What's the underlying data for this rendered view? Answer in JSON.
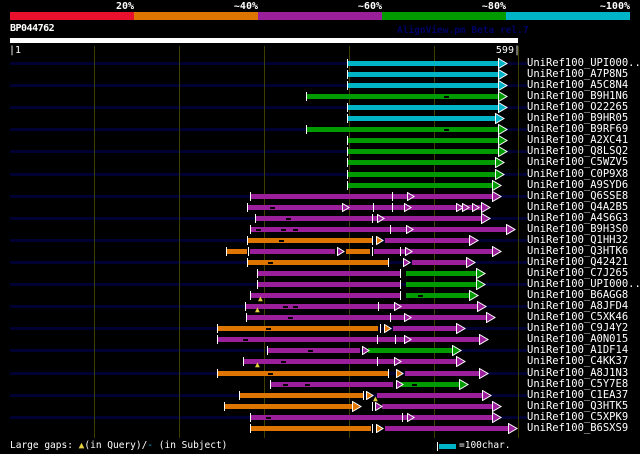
{
  "header": {
    "query_id": "BP044762",
    "app_credit": "AlignView.pm Beta rel.7"
  },
  "colorscale": {
    "labels": [
      "20%",
      "~40%",
      "~60%",
      "~80%",
      "~100%"
    ],
    "order": [
      "red",
      "orange",
      "purple",
      "green",
      "cyan"
    ],
    "colors": {
      "red": "#e8102d",
      "orange": "#dd7500",
      "purple": "#9b1f9b",
      "green": "#009b00",
      "cyan": "#00b4c8",
      "navy_stripe": "#000033",
      "gridline": "#3e3e00",
      "gap_yellow": "#e6d23c"
    }
  },
  "ruler": {
    "start_label": "|1",
    "end_label": "599|",
    "min": 1,
    "max": 599,
    "grid_interval": 100
  },
  "legend": {
    "swatch_color": "cyan",
    "label": "=100char."
  },
  "footer": {
    "prefix": "Large gaps: ",
    "query_symbol": "▲",
    "query_text": "(in Query)/",
    "subject_symbol": "-",
    "subject_text": " (in Subject)"
  },
  "chart_data": {
    "type": "bar",
    "subtype": "sequence-alignment-hit-spans",
    "xlabel": "query position (residues)",
    "xlim": [
      1,
      599
    ],
    "identity_bins": [
      "20%",
      "~40%",
      "~60%",
      "~80%",
      "~100%"
    ],
    "rows": [
      {
        "label": "UniRef100_UPI000..",
        "navy": true,
        "segments": [
          {
            "color": "cyan",
            "start": 398,
            "end": 577,
            "cap": "arrow"
          }
        ],
        "ticks": [
          398
        ]
      },
      {
        "label": "UniRef100_A7P8N5",
        "navy": false,
        "segments": [
          {
            "color": "cyan",
            "start": 398,
            "end": 577,
            "cap": "arrow"
          }
        ],
        "ticks": [
          398
        ]
      },
      {
        "label": "UniRef100_A5C8N4",
        "navy": true,
        "segments": [
          {
            "color": "cyan",
            "start": 398,
            "end": 577,
            "cap": "arrow"
          }
        ],
        "ticks": [
          398
        ]
      },
      {
        "label": "UniRef100_B9H1N6",
        "navy": false,
        "segments": [
          {
            "color": "green",
            "start": 349,
            "end": 577,
            "cap": "arrow"
          }
        ],
        "ticks": [
          349
        ],
        "dashes": [
          514
        ]
      },
      {
        "label": "UniRef100_O22265",
        "navy": true,
        "segments": [
          {
            "color": "cyan",
            "start": 398,
            "end": 577,
            "cap": "arrow"
          }
        ],
        "ticks": [
          398
        ]
      },
      {
        "label": "UniRef100_B9HR05",
        "navy": false,
        "segments": [
          {
            "color": "cyan",
            "start": 398,
            "end": 573,
            "cap": "arrow"
          }
        ],
        "ticks": [
          398
        ]
      },
      {
        "label": "UniRef100_B9RF69",
        "navy": true,
        "segments": [
          {
            "color": "green",
            "start": 349,
            "end": 577,
            "cap": "arrow"
          }
        ],
        "ticks": [
          349
        ],
        "dashes": [
          514
        ]
      },
      {
        "label": "UniRef100_A2XC41",
        "navy": false,
        "segments": [
          {
            "color": "green",
            "start": 398,
            "end": 577,
            "cap": "arrow"
          }
        ],
        "ticks": [
          398
        ]
      },
      {
        "label": "UniRef100_Q8LSQ2",
        "navy": true,
        "segments": [
          {
            "color": "green",
            "start": 398,
            "end": 577,
            "cap": "arrow"
          }
        ],
        "ticks": [
          398
        ]
      },
      {
        "label": "UniRef100_C5WZV5",
        "navy": false,
        "segments": [
          {
            "color": "green",
            "start": 398,
            "end": 573,
            "cap": "arrow"
          }
        ],
        "ticks": [
          398
        ]
      },
      {
        "label": "UniRef100_C0P9X8",
        "navy": true,
        "segments": [
          {
            "color": "green",
            "start": 398,
            "end": 573,
            "cap": "arrow"
          }
        ],
        "ticks": [
          398
        ]
      },
      {
        "label": "UniRef100_A9SYD6",
        "navy": false,
        "segments": [
          {
            "color": "green",
            "start": 398,
            "end": 570,
            "cap": "arrow"
          }
        ],
        "ticks": [
          398
        ]
      },
      {
        "label": "UniRef100_Q6SSE8",
        "navy": true,
        "segments": [
          {
            "color": "purple",
            "start": 284,
            "end": 570,
            "cap": "arrow"
          }
        ],
        "ticks": [
          284,
          451
        ],
        "marks": [
          {
            "pos": 470,
            "color": "purple"
          }
        ]
      },
      {
        "label": "UniRef100_Q4A2B5",
        "navy": false,
        "segments": [
          {
            "color": "purple",
            "start": 280,
            "end": 557,
            "cap": "arrow"
          }
        ],
        "ticks": [
          280,
          428,
          451
        ],
        "dashes": [
          309
        ],
        "marks": [
          {
            "pos": 393,
            "color": "purple"
          },
          {
            "pos": 466,
            "color": "purple"
          },
          {
            "pos": 527,
            "color": "purple"
          },
          {
            "pos": 534,
            "color": "purple"
          },
          {
            "pos": 546,
            "color": "purple"
          }
        ]
      },
      {
        "label": "UniRef100_A4S6G3",
        "navy": true,
        "segments": [
          {
            "color": "purple",
            "start": 289,
            "end": 557,
            "cap": "arrow"
          }
        ],
        "ticks": [
          289,
          427
        ],
        "dashes": [
          328
        ],
        "marks": [
          {
            "pos": 434,
            "color": "purple"
          }
        ]
      },
      {
        "label": "UniRef100_B9H3S0",
        "navy": false,
        "segments": [
          {
            "color": "purple",
            "start": 284,
            "end": 586,
            "cap": "arrow"
          }
        ],
        "ticks": [
          284,
          448
        ],
        "dashes": [
          293,
          322,
          336
        ],
        "marks": [
          {
            "pos": 468,
            "color": "purple"
          }
        ]
      },
      {
        "label": "UniRef100_Q1HH32",
        "navy": true,
        "segments": [
          {
            "color": "orange",
            "start": 280,
            "end": 427,
            "cap": "none"
          },
          {
            "color": "purple",
            "start": 442,
            "end": 542,
            "cap": "arrow"
          }
        ],
        "ticks": [
          280,
          427
        ],
        "dashes": [
          320
        ],
        "marks": [
          {
            "pos": 433,
            "color": "orange"
          }
        ]
      },
      {
        "label": "UniRef100_Q3HTK6",
        "navy": false,
        "segments": [
          {
            "color": "orange",
            "start": 255,
            "end": 280,
            "cap": "none"
          },
          {
            "color": "purple",
            "start": 284,
            "end": 384,
            "cap": "none"
          },
          {
            "color": "orange",
            "start": 397,
            "end": 425,
            "cap": "none"
          },
          {
            "color": "purple",
            "start": 430,
            "end": 570,
            "cap": "arrow"
          }
        ],
        "ticks": [
          255,
          281,
          427,
          460
        ],
        "marks": [
          {
            "pos": 387,
            "color": "purple"
          },
          {
            "pos": 467,
            "color": "purple"
          }
        ]
      },
      {
        "label": "UniRef100_Q42421",
        "navy": true,
        "segments": [
          {
            "color": "orange",
            "start": 280,
            "end": 446,
            "cap": "none"
          },
          {
            "color": "purple",
            "start": 474,
            "end": 539,
            "cap": "arrow"
          }
        ],
        "ticks": [
          280,
          446
        ],
        "dashes": [
          307
        ],
        "marks": [
          {
            "pos": 465,
            "color": "purple"
          }
        ]
      },
      {
        "label": "UniRef100_C7J265",
        "navy": false,
        "segments": [
          {
            "color": "purple",
            "start": 292,
            "end": 460,
            "cap": "none"
          },
          {
            "color": "green",
            "start": 467,
            "end": 551,
            "cap": "arrow"
          }
        ],
        "ticks": [
          292,
          460
        ]
      },
      {
        "label": "UniRef100_UPI000..",
        "navy": true,
        "segments": [
          {
            "color": "purple",
            "start": 292,
            "end": 460,
            "cap": "none"
          },
          {
            "color": "green",
            "start": 467,
            "end": 551,
            "cap": "arrow"
          }
        ],
        "ticks": [
          292,
          460
        ]
      },
      {
        "label": "UniRef100_B6AGG8",
        "navy": false,
        "segments": [
          {
            "color": "purple",
            "start": 284,
            "end": 460,
            "cap": "none"
          },
          {
            "color": "green",
            "start": 467,
            "end": 543,
            "cap": "arrow"
          }
        ],
        "ticks": [
          284,
          460
        ],
        "dashes": [
          484
        ],
        "gaps": [
          296
        ]
      },
      {
        "label": "UniRef100_A8JFD4",
        "navy": true,
        "segments": [
          {
            "color": "purple",
            "start": 278,
            "end": 552,
            "cap": "arrow"
          }
        ],
        "ticks": [
          278,
          434
        ],
        "dashes": [
          325,
          336
        ],
        "marks": [
          {
            "pos": 454,
            "color": "purple"
          }
        ],
        "gaps": [
          293
        ]
      },
      {
        "label": "UniRef100_C5XK46",
        "navy": false,
        "segments": [
          {
            "color": "purple",
            "start": 279,
            "end": 563,
            "cap": "arrow"
          }
        ],
        "ticks": [
          279,
          448
        ],
        "dashes": [
          331
        ],
        "marks": [
          {
            "pos": 466,
            "color": "purple"
          }
        ]
      },
      {
        "label": "UniRef100_C9J4Y2",
        "navy": true,
        "segments": [
          {
            "color": "orange",
            "start": 245,
            "end": 434,
            "cap": "none"
          },
          {
            "color": "purple",
            "start": 452,
            "end": 527,
            "cap": "arrow"
          }
        ],
        "ticks": [
          245,
          437
        ],
        "dashes": [
          305
        ],
        "marks": [
          {
            "pos": 442,
            "color": "orange"
          }
        ]
      },
      {
        "label": "UniRef100_A0N015",
        "navy": false,
        "segments": [
          {
            "color": "purple",
            "start": 245,
            "end": 554,
            "cap": "arrow"
          }
        ],
        "ticks": [
          245,
          433,
          454
        ],
        "dashes": [
          278
        ],
        "marks": [
          {
            "pos": 466,
            "color": "purple"
          }
        ]
      },
      {
        "label": "UniRef100_A1DF14",
        "navy": true,
        "segments": [
          {
            "color": "purple",
            "start": 304,
            "end": 413,
            "cap": "none"
          },
          {
            "color": "green",
            "start": 423,
            "end": 523,
            "cap": "arrow"
          }
        ],
        "ticks": [
          304
        ],
        "dashes": [
          354
        ],
        "marks": [
          {
            "pos": 417,
            "color": "purple"
          }
        ]
      },
      {
        "label": "UniRef100_C4KK37",
        "navy": false,
        "segments": [
          {
            "color": "purple",
            "start": 275,
            "end": 527,
            "cap": "arrow"
          }
        ],
        "ticks": [
          275,
          433
        ],
        "dashes": [
          322
        ],
        "marks": [
          {
            "pos": 454,
            "color": "purple"
          }
        ],
        "gaps": [
          293
        ]
      },
      {
        "label": "UniRef100_A8J1N3",
        "navy": true,
        "segments": [
          {
            "color": "orange",
            "start": 245,
            "end": 446,
            "cap": "none"
          },
          {
            "color": "purple",
            "start": 466,
            "end": 554,
            "cap": "arrow"
          }
        ],
        "ticks": [
          245,
          446
        ],
        "dashes": [
          307
        ],
        "marks": [
          {
            "pos": 457,
            "color": "orange"
          }
        ]
      },
      {
        "label": "UniRef100_C5Y7E8",
        "navy": false,
        "segments": [
          {
            "color": "purple",
            "start": 307,
            "end": 452,
            "cap": "none"
          },
          {
            "color": "green",
            "start": 460,
            "end": 531,
            "cap": "arrow"
          }
        ],
        "ticks": [
          307
        ],
        "dashes": [
          325,
          351,
          476
        ],
        "marks": [
          {
            "pos": 456,
            "color": "purple"
          }
        ]
      },
      {
        "label": "UniRef100_C1EA37",
        "navy": true,
        "segments": [
          {
            "color": "orange",
            "start": 270,
            "end": 416,
            "cap": "none"
          },
          {
            "color": "purple",
            "start": 433,
            "end": 558,
            "cap": "arrow"
          }
        ],
        "ticks": [
          270,
          416
        ],
        "marks": [
          {
            "pos": 421,
            "color": "orange"
          }
        ],
        "gaps": [
          432
        ]
      },
      {
        "label": "UniRef100_Q3HTK5",
        "navy": false,
        "segments": [
          {
            "color": "orange",
            "start": 253,
            "end": 405,
            "cap": "arrow"
          },
          {
            "color": "purple",
            "start": 439,
            "end": 570,
            "cap": "arrow"
          }
        ],
        "ticks": [
          253,
          427
        ],
        "marks": [
          {
            "pos": 432,
            "color": "purple"
          }
        ]
      },
      {
        "label": "UniRef100_C5XPK9",
        "navy": true,
        "segments": [
          {
            "color": "purple",
            "start": 284,
            "end": 570,
            "cap": "arrow"
          }
        ],
        "ticks": [
          284,
          462
        ],
        "dashes": [
          305
        ],
        "marks": [
          {
            "pos": 470,
            "color": "purple"
          }
        ]
      },
      {
        "label": "UniRef100_B6SXS9",
        "navy": false,
        "segments": [
          {
            "color": "orange",
            "start": 284,
            "end": 427,
            "cap": "none"
          },
          {
            "color": "purple",
            "start": 442,
            "end": 588,
            "cap": "arrow"
          }
        ],
        "ticks": [
          284,
          427
        ],
        "marks": [
          {
            "pos": 433,
            "color": "orange"
          }
        ]
      }
    ]
  }
}
